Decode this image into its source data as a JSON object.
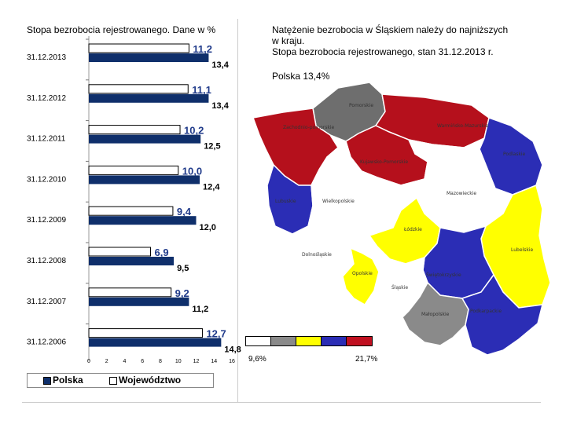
{
  "header": {
    "left_title": "Stopa bezrobocia rejestrowanego. Dane w %",
    "right_title_lines": [
      "Natężenie bezrobocia w Śląskiem należy do najniższych",
      "w kraju.",
      "Stopa bezrobocia rejestrowanego, stan  31.12.2013 r."
    ],
    "polska_note": "Polska  13,4%"
  },
  "chart_data": {
    "type": "bar",
    "orientation": "horizontal",
    "title": "Stopa bezrobocia rejestrowanego. Dane w %",
    "categories": [
      "31.12.2013",
      "31.12.2012",
      "31.12.2011",
      "31.12.2010",
      "31.12.2009",
      "31.12.2008",
      "31.12.2007",
      "31.12.2006"
    ],
    "series": [
      {
        "name": "Województwo",
        "values": [
          11.2,
          11.1,
          10.2,
          10.0,
          9.4,
          6.9,
          9.2,
          12.7
        ],
        "labels": [
          "11,2",
          "11,1",
          "10,2",
          "10,0",
          "9,4",
          "6,9",
          "9,2",
          "12,7"
        ],
        "color": "#ffffff",
        "label_color": "#1f3a8a"
      },
      {
        "name": "Polska",
        "values": [
          13.4,
          13.4,
          12.5,
          12.4,
          12.0,
          9.5,
          11.2,
          14.8
        ],
        "labels": [
          "13,4",
          "13,4",
          "12,5",
          "12,4",
          "12,0",
          "9,5",
          "11,2",
          "14,8"
        ],
        "color": "#0f2f6b",
        "label_color": "#000000"
      }
    ],
    "xlim": [
      0,
      16
    ],
    "x_ticks": [
      "0",
      "2",
      "4",
      "6",
      "8",
      "10",
      "12",
      "14",
      "16"
    ],
    "legend": [
      {
        "label": "Polska",
        "color": "#0f2f6b"
      },
      {
        "label": "Województwo",
        "color": "#ffffff"
      }
    ],
    "legend_position": "bottom"
  },
  "map": {
    "regions": [
      {
        "name": "Pomorskie",
        "color": "#6e6e6e"
      },
      {
        "name": "Zachodnio-pomorskie",
        "color": "#b5101c"
      },
      {
        "name": "Warmińsko-Mazurskie",
        "color": "#b5101c"
      },
      {
        "name": "Podlaskie",
        "color": "#2b2db5"
      },
      {
        "name": "Kujawsko-Pomorskie",
        "color": "#b5101c"
      },
      {
        "name": "Mazowieckie",
        "color": "#ffffff"
      },
      {
        "name": "Lubuskie",
        "color": "#2b2db5"
      },
      {
        "name": "Wielkopolskie",
        "color": "#ffffff"
      },
      {
        "name": "Łódzkie",
        "color": "#ffff00"
      },
      {
        "name": "Dolnośląskie",
        "color": "#ffffff"
      },
      {
        "name": "Lubelskie",
        "color": "#ffff00"
      },
      {
        "name": "Opolskie",
        "color": "#ffff00"
      },
      {
        "name": "Świętokrzyskie",
        "color": "#2b2db5"
      },
      {
        "name": "Śląskie",
        "color": "#ffffff"
      },
      {
        "name": "Małopolskie",
        "color": "#8a8a8a"
      },
      {
        "name": "Podkarpackie",
        "color": "#2b2db5"
      }
    ],
    "scale_colors": [
      "#ffffff",
      "#8a8a8a",
      "#ffff00",
      "#2b2db5",
      "#c01020"
    ],
    "scale_min_label": "9,6%",
    "scale_max_label": "21,7%"
  }
}
